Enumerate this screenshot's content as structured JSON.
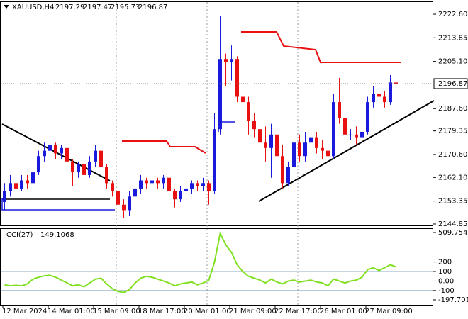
{
  "chart_data": {
    "type": "candlestick",
    "title": "XAUUSD,H4",
    "categories": [
      "12 Mar 2024",
      null,
      null,
      null,
      null,
      null,
      null,
      null,
      "14 Mar 01:00",
      null,
      null,
      null,
      null,
      null,
      null,
      null,
      "15 Mar 09:00",
      null,
      null,
      null,
      null,
      null,
      null,
      null,
      "18 Mar 17:00",
      null,
      null,
      null,
      null,
      null,
      null,
      null,
      "20 Mar 01:00",
      null,
      null,
      null,
      null,
      null,
      null,
      null,
      "21 Mar 09:00",
      null,
      null,
      null,
      null,
      null,
      null,
      null,
      "22 Mar 17:00",
      null,
      null,
      null,
      null,
      null,
      null,
      null,
      "26 Mar 01:00",
      null,
      null,
      null,
      null,
      null,
      null,
      null,
      "27 Mar 09:00",
      null,
      null,
      null,
      null,
      null
    ],
    "open": [
      2153,
      2157,
      2160,
      2158,
      2161,
      2160,
      2164,
      2170,
      2172,
      2174,
      2171,
      2173,
      2168,
      2164,
      2167,
      2163,
      2168,
      2172,
      2166,
      2160,
      2157,
      2152,
      2150,
      2155,
      2158,
      2161,
      2160,
      2161,
      2160,
      2162,
      2157,
      2154,
      2157,
      2158,
      2160,
      2159,
      2160,
      2157,
      2180,
      2206,
      2205,
      2206,
      2192,
      2190,
      2183,
      2180,
      2175,
      2173,
      2178,
      2170,
      2160,
      2166,
      2175,
      2170,
      2175,
      2177,
      2173,
      2172,
      2170,
      2190,
      2184,
      2178,
      2178,
      2177,
      2179,
      2190,
      2193,
      2192,
      2190,
      2197.29
    ],
    "high": [
      2160,
      2163,
      2162,
      2163,
      2163,
      2166,
      2172,
      2175,
      2176,
      2175,
      2174,
      2174,
      2169,
      2168,
      2168,
      2170,
      2174,
      2173,
      2167,
      2161,
      2158,
      2154,
      2157,
      2160,
      2163,
      2162,
      2163,
      2162,
      2163,
      2163,
      2158,
      2159,
      2160,
      2161,
      2161,
      2162,
      2161,
      2186,
      2222,
      2208,
      2211,
      2207,
      2194,
      2192,
      2186,
      2182,
      2181,
      2182,
      2180,
      2174,
      2168,
      2177,
      2178,
      2179,
      2180,
      2179,
      2176,
      2174,
      2193,
      2199,
      2186,
      2180,
      2181,
      2182,
      2192,
      2196,
      2196,
      2194,
      2200,
      2197.47
    ],
    "low": [
      2150,
      2155,
      2156,
      2157,
      2158,
      2159,
      2163,
      2168,
      2170,
      2169,
      2169,
      2166,
      2159,
      2162,
      2161,
      2162,
      2166,
      2164,
      2158,
      2155,
      2150,
      2147,
      2148,
      2153,
      2156,
      2158,
      2158,
      2158,
      2158,
      2155,
      2151,
      2153,
      2155,
      2156,
      2157,
      2157,
      2152,
      2156,
      2178,
      2196,
      2198,
      2190,
      2172,
      2178,
      2177,
      2170,
      2168,
      2162,
      2162,
      2158,
      2159,
      2165,
      2168,
      2168,
      2173,
      2171,
      2169,
      2168,
      2169,
      2182,
      2175,
      2176,
      2174,
      2176,
      2178,
      2188,
      2188,
      2188,
      2189,
      2195.73
    ],
    "close": [
      2157,
      2160,
      2158,
      2161,
      2160,
      2164,
      2170,
      2172,
      2174,
      2171,
      2173,
      2168,
      2164,
      2167,
      2163,
      2168,
      2172,
      2166,
      2160,
      2157,
      2152,
      2150,
      2155,
      2158,
      2161,
      2160,
      2161,
      2160,
      2162,
      2157,
      2154,
      2157,
      2158,
      2160,
      2159,
      2160,
      2157,
      2180,
      2206,
      2205,
      2206,
      2192,
      2190,
      2183,
      2180,
      2175,
      2173,
      2178,
      2170,
      2160,
      2166,
      2175,
      2170,
      2175,
      2177,
      2173,
      2172,
      2170,
      2190,
      2184,
      2178,
      2178,
      2177,
      2179,
      2190,
      2193,
      2192,
      2190,
      2197.29,
      2196.87
    ],
    "up_color": "#1a1adc",
    "down_color": "#e81010",
    "ylim": [
      2144.32,
      2227.07
    ],
    "yticks": [
      {
        "value": 2222.6,
        "label": "2222.60"
      },
      2213.85,
      {
        "value": 2205.1,
        "label": "2205.10"
      },
      {
        "value": 2187.6,
        "label": "2187.60"
      },
      2179.35,
      {
        "value": 2170.6,
        "label": "2170.60"
      },
      {
        "value": 2162.1,
        "label": "2162.10"
      },
      2153.35,
      2144.85
    ],
    "indicator": {
      "type": "line",
      "name": "CCI(27)",
      "color": "#80e020",
      "values": [
        -40,
        -50,
        -45,
        -50,
        -30,
        20,
        40,
        55,
        60,
        40,
        10,
        -20,
        -50,
        -40,
        -60,
        -20,
        20,
        30,
        -30,
        -80,
        -110,
        -120,
        -90,
        -20,
        30,
        50,
        40,
        20,
        0,
        -20,
        -50,
        -30,
        -20,
        -10,
        -40,
        -20,
        10,
        200,
        500,
        380,
        300,
        170,
        100,
        50,
        30,
        10,
        -20,
        20,
        -10,
        -30,
        0,
        10,
        -10,
        0,
        10,
        -10,
        -20,
        -50,
        20,
        0,
        -20,
        0,
        10,
        40,
        120,
        140,
        110,
        140,
        170,
        149.1068
      ],
      "ylim": [
        -197.7012,
        509.754
      ],
      "yticks": [
        509.754,
        200,
        100,
        {
          "value": 0,
          "label": "0.00"
        },
        -100,
        -197.7012
      ]
    }
  }
}
